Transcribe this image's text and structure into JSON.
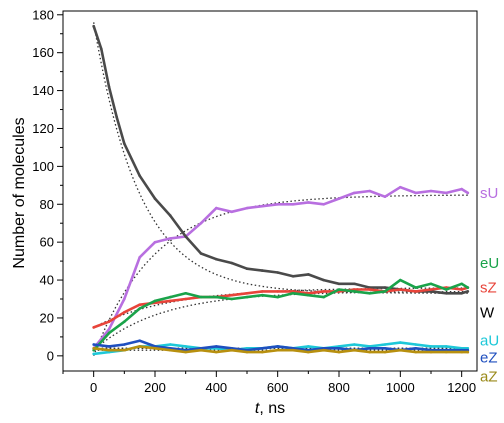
{
  "chart_data": {
    "type": "line",
    "xlabel_var": "t",
    "xlabel_unit": ", ns",
    "ylabel": "Number of molecules",
    "xlim": [
      -100,
      1250
    ],
    "ylim": [
      -8,
      182
    ],
    "x_ticks": [
      0,
      200,
      400,
      600,
      800,
      1000,
      1200
    ],
    "y_ticks": [
      0,
      20,
      40,
      60,
      80,
      100,
      120,
      140,
      160,
      180
    ],
    "x_tick_labels": [
      "0",
      "200",
      "400",
      "600",
      "800",
      "1000",
      "1200"
    ],
    "y_tick_labels": [
      "0",
      "20",
      "40",
      "60",
      "80",
      "100",
      "120",
      "140",
      "160",
      "180"
    ],
    "grid": false,
    "legend": "inline-right",
    "series": [
      {
        "name": "sU",
        "color": "#b86fe0",
        "fit_end": 85,
        "fit_tau": 200,
        "x": [
          0,
          50,
          100,
          150,
          200,
          250,
          300,
          350,
          400,
          450,
          500,
          550,
          600,
          650,
          700,
          750,
          800,
          850,
          900,
          950,
          1000,
          1050,
          1100,
          1150,
          1200,
          1220
        ],
        "values": [
          4,
          14,
          30,
          52,
          60,
          62,
          63,
          70,
          78,
          76,
          78,
          79,
          80,
          80,
          81,
          80,
          83,
          86,
          87,
          84,
          89,
          86,
          87,
          86,
          88,
          86
        ]
      },
      {
        "name": "W",
        "color": "#4a4a4a",
        "fit_start": 176,
        "fit_end": 33,
        "fit_tau": 150,
        "x": [
          0,
          25,
          50,
          75,
          100,
          150,
          200,
          250,
          300,
          350,
          400,
          450,
          500,
          550,
          600,
          650,
          700,
          750,
          800,
          850,
          900,
          950,
          1000,
          1050,
          1100,
          1150,
          1200,
          1220
        ],
        "values": [
          174,
          162,
          142,
          126,
          112,
          95,
          83,
          74,
          63,
          54,
          51,
          49,
          46,
          45,
          44,
          42,
          43,
          40,
          38,
          38,
          36,
          36,
          35,
          34,
          34,
          33,
          33,
          34
        ]
      },
      {
        "name": "sZ",
        "color": "#e8443a",
        "fit_start": 15,
        "fit_end": 36,
        "fit_tau": 250,
        "x": [
          0,
          50,
          100,
          150,
          200,
          250,
          300,
          350,
          400,
          450,
          500,
          550,
          600,
          650,
          700,
          750,
          800,
          850,
          900,
          950,
          1000,
          1050,
          1100,
          1150,
          1200,
          1220
        ],
        "values": [
          15,
          18,
          23,
          27,
          28,
          29,
          30,
          31,
          31,
          32,
          33,
          34,
          34,
          34,
          33,
          34,
          34,
          35,
          35,
          34,
          35,
          34,
          35,
          36,
          35,
          36
        ]
      },
      {
        "name": "eU",
        "color": "#1aa34a",
        "fit_start": 3,
        "fit_end": 34,
        "fit_tau": 220,
        "x": [
          0,
          50,
          100,
          150,
          200,
          250,
          300,
          350,
          400,
          450,
          500,
          550,
          600,
          650,
          700,
          750,
          800,
          850,
          900,
          950,
          1000,
          1050,
          1100,
          1150,
          1200,
          1220
        ],
        "values": [
          3,
          12,
          18,
          25,
          29,
          31,
          33,
          31,
          31,
          30,
          31,
          32,
          31,
          33,
          32,
          31,
          35,
          34,
          33,
          34,
          40,
          36,
          38,
          35,
          38,
          36
        ]
      },
      {
        "name": "aU",
        "color": "#1ec8d8",
        "fit_value": 4,
        "x": [
          0,
          50,
          100,
          150,
          200,
          250,
          300,
          350,
          400,
          450,
          500,
          550,
          600,
          650,
          700,
          750,
          800,
          850,
          900,
          950,
          1000,
          1050,
          1100,
          1150,
          1200,
          1220
        ],
        "values": [
          1,
          2,
          3,
          5,
          5,
          6,
          5,
          4,
          4,
          3,
          4,
          4,
          5,
          4,
          5,
          4,
          5,
          6,
          5,
          6,
          7,
          6,
          5,
          5,
          4,
          4
        ]
      },
      {
        "name": "eZ",
        "color": "#1f4fbf",
        "fit_value": 4,
        "x": [
          0,
          50,
          100,
          150,
          200,
          250,
          300,
          350,
          400,
          450,
          500,
          550,
          600,
          650,
          700,
          750,
          800,
          850,
          900,
          950,
          1000,
          1050,
          1100,
          1150,
          1200,
          1220
        ],
        "values": [
          6,
          5,
          6,
          8,
          5,
          4,
          3,
          4,
          5,
          4,
          3,
          4,
          5,
          4,
          3,
          4,
          4,
          3,
          4,
          4,
          3,
          4,
          3,
          3,
          3,
          3
        ]
      },
      {
        "name": "aZ",
        "color": "#b8900f",
        "fit_value": 3,
        "x": [
          0,
          50,
          100,
          150,
          200,
          250,
          300,
          350,
          400,
          450,
          500,
          550,
          600,
          650,
          700,
          750,
          800,
          850,
          900,
          950,
          1000,
          1050,
          1100,
          1150,
          1200,
          1220
        ],
        "values": [
          4,
          3,
          3,
          5,
          4,
          3,
          2,
          3,
          2,
          3,
          2,
          2,
          3,
          3,
          2,
          3,
          2,
          3,
          2,
          2,
          3,
          2,
          2,
          2,
          2,
          2
        ]
      }
    ],
    "labels": [
      {
        "text": "sU",
        "color": "#b86fe0",
        "y": 86
      },
      {
        "text": "eU",
        "color": "#1aa34a",
        "y": 49
      },
      {
        "text": "sZ",
        "color": "#e8443a",
        "y": 36
      },
      {
        "text": "W",
        "color": "#000000",
        "y": 23
      },
      {
        "text": "aU",
        "color": "#1ec8d8",
        "y": 8
      },
      {
        "text": "eZ",
        "color": "#1f4fbf",
        "y": -1
      },
      {
        "text": "aZ",
        "color": "#9a8a1a",
        "y": -11
      }
    ]
  }
}
